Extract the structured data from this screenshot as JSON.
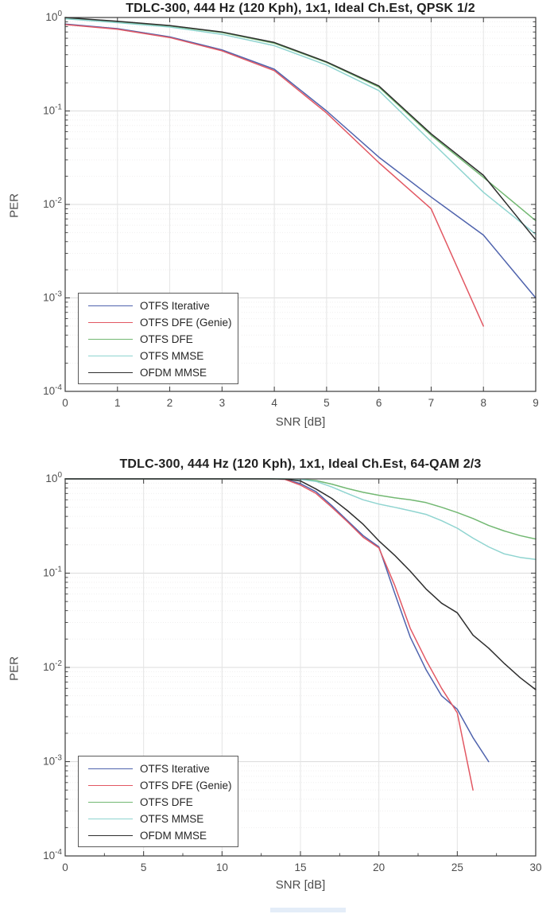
{
  "page": {
    "background": "#ffffff"
  },
  "chart_data": [
    {
      "type": "line",
      "title": "TDLC-300, 444 Hz (120 Kph), 1x1, Ideal Ch.Est, QPSK 1/2",
      "xlabel": "SNR [dB]",
      "ylabel": "PER",
      "xlim": [
        0,
        9
      ],
      "x_ticks": [
        0,
        1,
        2,
        3,
        4,
        5,
        6,
        7,
        8,
        9
      ],
      "y_scale": "log",
      "ylim": [
        0.0001,
        1
      ],
      "y_tick_exponents": [
        0,
        -1,
        -2,
        -3,
        -4
      ],
      "grid": "on",
      "legend_position": "bottom-left",
      "series": [
        {
          "name": "OTFS Iterative",
          "color": "#4f63ad",
          "x": [
            0,
            1,
            2,
            3,
            4,
            5,
            6,
            7,
            8,
            9
          ],
          "y": [
            0.85,
            0.76,
            0.62,
            0.45,
            0.28,
            0.1,
            0.032,
            0.012,
            0.0047,
            0.001
          ]
        },
        {
          "name": "OTFS DFE (Genie)",
          "color": "#e25863",
          "x": [
            0,
            1,
            2,
            3,
            4,
            5,
            6,
            7,
            8
          ],
          "y": [
            0.84,
            0.75,
            0.61,
            0.44,
            0.27,
            0.095,
            0.028,
            0.009,
            0.0005
          ]
        },
        {
          "name": "OTFS DFE",
          "color": "#72b872",
          "x": [
            0,
            1,
            2,
            3,
            4,
            5,
            6,
            7,
            8,
            9
          ],
          "y": [
            0.99,
            0.9,
            0.81,
            0.69,
            0.53,
            0.33,
            0.18,
            0.055,
            0.0195,
            0.0067
          ]
        },
        {
          "name": "OTFS MMSE",
          "color": "#8fd4d0",
          "x": [
            0,
            1,
            2,
            3,
            4,
            5,
            6,
            7,
            8,
            9
          ],
          "y": [
            0.97,
            0.88,
            0.79,
            0.66,
            0.5,
            0.31,
            0.165,
            0.047,
            0.0135,
            0.0048
          ]
        },
        {
          "name": "OFDM MMSE",
          "color": "#2e2e2e",
          "x": [
            0,
            1,
            2,
            3,
            4,
            5,
            6,
            7,
            8,
            9
          ],
          "y": [
            1.0,
            0.91,
            0.82,
            0.7,
            0.54,
            0.335,
            0.185,
            0.057,
            0.0205,
            0.0042
          ]
        }
      ]
    },
    {
      "type": "line",
      "title": "TDLC-300, 444 Hz (120 Kph), 1x1, Ideal Ch.Est, 64-QAM 2/3",
      "xlabel": "SNR [dB]",
      "ylabel": "PER",
      "xlim": [
        0,
        30
      ],
      "x_ticks": [
        0,
        5,
        10,
        15,
        20,
        25,
        30
      ],
      "x_minor_step": 2.5,
      "y_scale": "log",
      "ylim": [
        0.0001,
        1
      ],
      "y_tick_exponents": [
        0,
        -1,
        -2,
        -3,
        -4
      ],
      "grid": "on",
      "legend_position": "bottom-left",
      "series": [
        {
          "name": "OTFS Iterative",
          "color": "#4f63ad",
          "x": [
            0,
            2,
            4,
            6,
            8,
            10,
            12,
            13,
            14,
            15,
            16,
            17,
            18,
            19,
            20,
            21,
            22,
            23,
            24,
            25,
            26,
            27
          ],
          "y": [
            1,
            1,
            1,
            1,
            1,
            1,
            1,
            1,
            0.99,
            0.89,
            0.73,
            0.52,
            0.36,
            0.25,
            0.19,
            0.062,
            0.021,
            0.0095,
            0.005,
            0.0036,
            0.0018,
            0.001
          ]
        },
        {
          "name": "OTFS DFE (Genie)",
          "color": "#e25863",
          "x": [
            0,
            2,
            4,
            6,
            8,
            10,
            12,
            13,
            14,
            15,
            16,
            17,
            18,
            19,
            20,
            21,
            22,
            23,
            24,
            25,
            26
          ],
          "y": [
            1,
            1,
            1,
            1,
            1,
            1,
            1,
            1,
            0.99,
            0.86,
            0.7,
            0.5,
            0.35,
            0.24,
            0.185,
            0.075,
            0.026,
            0.012,
            0.006,
            0.0033,
            0.0005
          ]
        },
        {
          "name": "OTFS DFE",
          "color": "#72b872",
          "x": [
            0,
            2,
            4,
            6,
            8,
            10,
            12,
            13,
            14,
            15,
            16,
            17,
            18,
            19,
            20,
            21,
            22,
            23,
            24,
            25,
            26,
            27,
            28,
            29,
            30
          ],
          "y": [
            1,
            1,
            1,
            1,
            1,
            1,
            1,
            1,
            1,
            0.99,
            0.96,
            0.88,
            0.79,
            0.72,
            0.67,
            0.63,
            0.6,
            0.56,
            0.5,
            0.44,
            0.38,
            0.32,
            0.28,
            0.25,
            0.23
          ]
        },
        {
          "name": "OTFS MMSE",
          "color": "#8fd4d0",
          "x": [
            0,
            2,
            4,
            6,
            8,
            10,
            12,
            13,
            14,
            15,
            16,
            17,
            18,
            19,
            20,
            21,
            22,
            23,
            24,
            25,
            26,
            27,
            28,
            29,
            30
          ],
          "y": [
            1,
            1,
            1,
            1,
            1,
            1,
            1,
            1,
            1,
            0.985,
            0.94,
            0.82,
            0.7,
            0.6,
            0.54,
            0.5,
            0.46,
            0.42,
            0.36,
            0.3,
            0.235,
            0.19,
            0.16,
            0.147,
            0.14
          ]
        },
        {
          "name": "OFDM MMSE",
          "color": "#2e2e2e",
          "x": [
            0,
            2,
            4,
            6,
            8,
            10,
            12,
            13,
            14,
            15,
            16,
            17,
            18,
            19,
            20,
            21,
            22,
            23,
            24,
            25,
            26,
            27,
            28,
            29,
            30
          ],
          "y": [
            1,
            1,
            1,
            1,
            1,
            1,
            1,
            1,
            0.995,
            0.95,
            0.78,
            0.62,
            0.46,
            0.33,
            0.22,
            0.155,
            0.105,
            0.068,
            0.048,
            0.038,
            0.022,
            0.016,
            0.011,
            0.0078,
            0.0058
          ]
        }
      ]
    }
  ]
}
